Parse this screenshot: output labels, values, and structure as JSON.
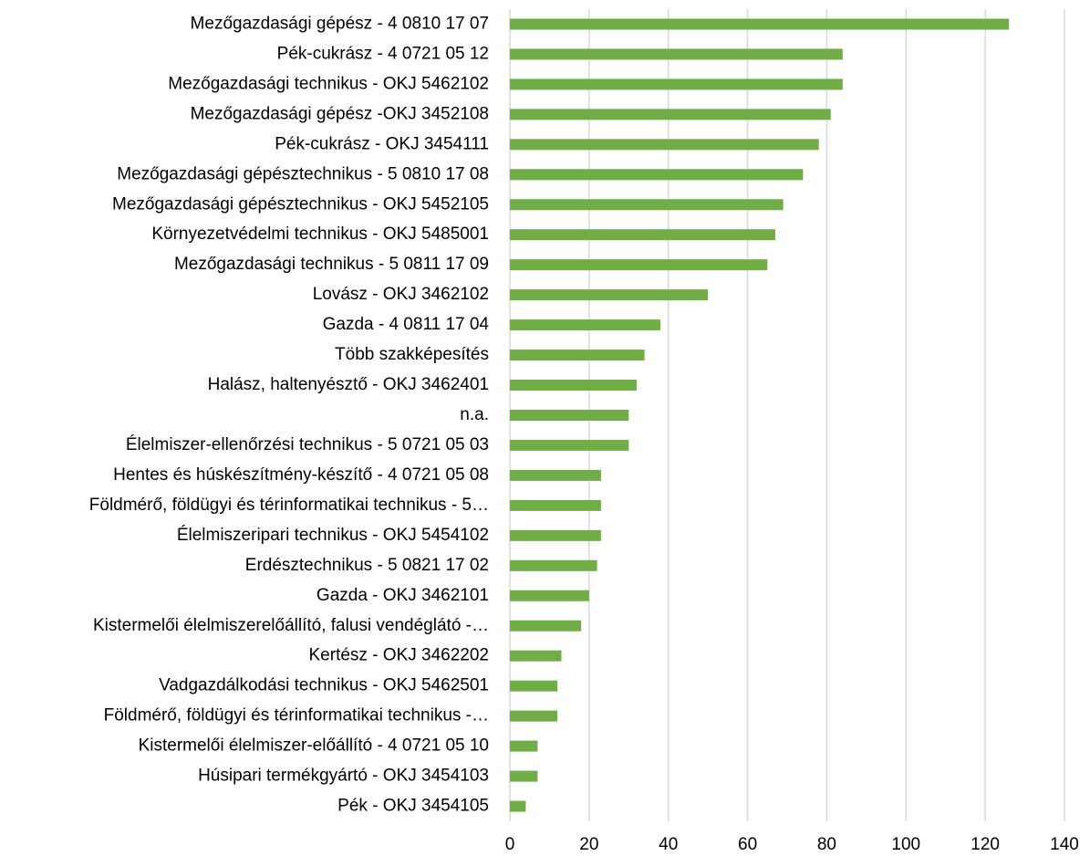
{
  "chart_data": {
    "type": "barh",
    "categories": [
      "Mezőgazdasági gépész - 4 0810 17 07",
      "Pék-cukrász - 4 0721 05 12",
      "Mezőgazdasági technikus - OKJ 5462102",
      "Mezőgazdasági gépész -OKJ  3452108",
      "Pék-cukrász - OKJ 3454111",
      "Mezőgazdasági gépésztechnikus - 5 0810 17 08",
      "Mezőgazdasági gépésztechnikus - OKJ 5452105",
      "Környezetvédelmi technikus - OKJ 5485001",
      "Mezőgazdasági technikus - 5 0811 17 09",
      "Lovász - OKJ 3462102",
      "Gazda - 4 0811 17 04",
      "Több szakképesítés",
      "Halász, haltenyésztő - OKJ 3462401",
      "n.a.",
      "Élelmiszer-ellenőrzési technikus - 5 0721 05 03",
      "Hentes és húskészítmény-készítő - 4 0721 05 08",
      "Földmérő, földügyi és térinformatikai technikus - 5…",
      "Élelmiszeripari technikus - OKJ 5454102",
      "Erdésztechnikus - 5 0821 17 02",
      "Gazda - OKJ 3462101",
      "Kistermelői élelmiszerelőállító, falusi vendéglátó -…",
      "Kertész - OKJ 3462202",
      "Vadgazdálkodási technikus - OKJ 5462501",
      "Földmérő, földügyi és térinformatikai technikus -…",
      "Kistermelői élelmiszer-előállító - 4 0721 05 10",
      "Húsipari termékgyártó - OKJ 3454103",
      "Pék - OKJ 3454105"
    ],
    "values": [
      126,
      84,
      84,
      81,
      78,
      74,
      69,
      67,
      65,
      50,
      38,
      34,
      32,
      30,
      30,
      23,
      23,
      23,
      22,
      20,
      18,
      13,
      12,
      12,
      7,
      7,
      4
    ],
    "color": "#70ad47",
    "xlim": [
      0,
      140
    ],
    "xticks": [
      0,
      20,
      40,
      60,
      80,
      100,
      120,
      140
    ],
    "grid": true
  }
}
